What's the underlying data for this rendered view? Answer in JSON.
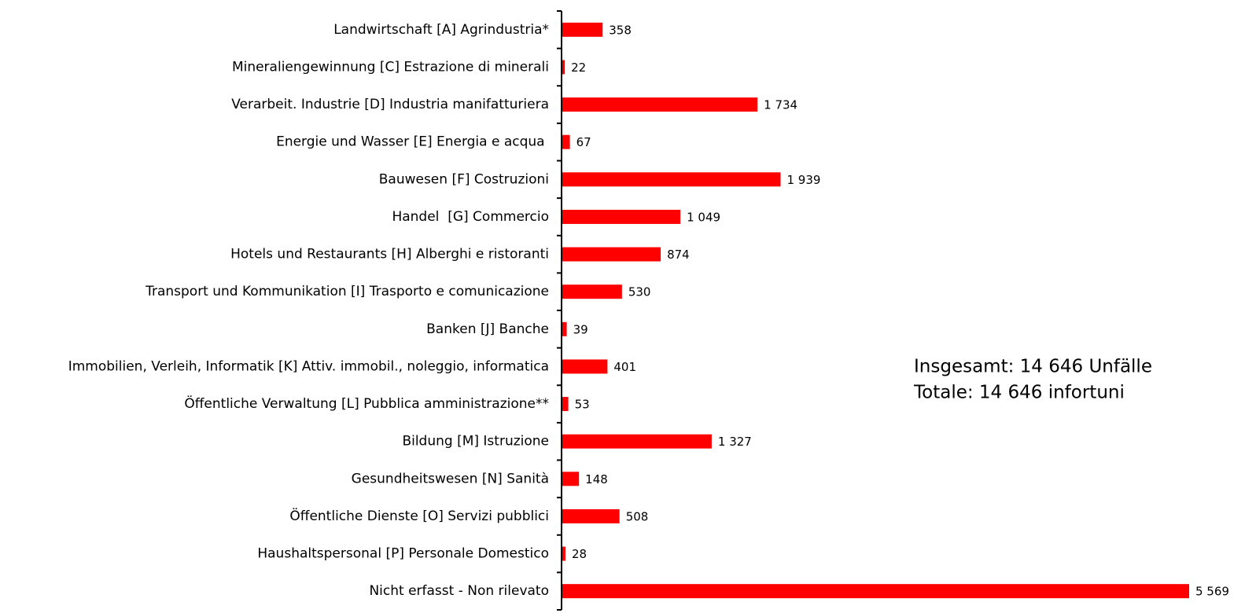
{
  "chart_data": {
    "type": "bar",
    "orientation": "horizontal",
    "categories": [
      "Landwirtschaft [A] Agrindustria*",
      "Mineraliengewinnung [C] Estrazione di minerali",
      "Verarbeit. Industrie [D] Industria manifatturiera",
      "Energie und Wasser [E] Energia e acqua ",
      "Bauwesen [F] Costruzioni",
      "Handel  [G] Commercio",
      "Hotels und Restaurants [H] Alberghi e ristoranti",
      "Transport und Kommunikation [I] Trasporto e comunicazione",
      "Banken [J] Banche",
      "Immobilien, Verleih, Informatik [K] Attiv. immobil., noleggio, informatica",
      "Öffentliche Verwaltung [L] Pubblica amministrazione**",
      "Bildung [M] Istruzione",
      "Gesundheitswesen [N] Sanità",
      "Öffentliche Dienste [O] Servizi pubblici",
      "Haushaltspersonal [P] Personale Domestico",
      "Nicht erfasst - Non rilevato"
    ],
    "values": [
      358,
      22,
      1734,
      67,
      1939,
      1049,
      874,
      530,
      39,
      401,
      53,
      1327,
      148,
      508,
      28,
      5569
    ],
    "value_labels": [
      "358",
      "22",
      "1 734",
      "67",
      "1 939",
      "1 049",
      "874",
      "530",
      "39",
      "401",
      "53",
      "1 327",
      "148",
      "508",
      "28",
      "5 569"
    ],
    "color": "#ff0000",
    "annotations": [
      "Insgesamt: 14 646 Unfälle",
      "Totale: 14 646 infortuni"
    ]
  }
}
